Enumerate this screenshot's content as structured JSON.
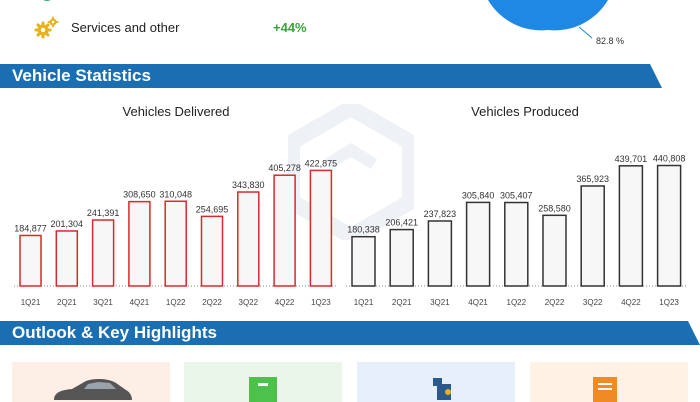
{
  "top": {
    "services_label": "Services and other",
    "services_value": "+44%",
    "pie_pct_label": "82.8 %",
    "pie_color": "#1f88e5",
    "gear_icon_color": "#e8b21c",
    "green_icon_color": "#3aa37a"
  },
  "sections": {
    "vehicle_statistics": "Vehicle Statistics",
    "outlook": "Outlook & Key Highlights",
    "band_color": "#1a6fb3"
  },
  "chart_data": [
    {
      "type": "bar",
      "title": "Vehicles Delivered",
      "categories": [
        "1Q21",
        "2Q21",
        "3Q21",
        "4Q21",
        "1Q22",
        "2Q22",
        "3Q22",
        "4Q22",
        "1Q23"
      ],
      "values": [
        184877,
        201304,
        241391,
        308650,
        310048,
        254695,
        343830,
        405278,
        422875
      ],
      "value_labels": [
        "184,877",
        "201,304",
        "241,391",
        "308,650",
        "310,048",
        "254,695",
        "343,830",
        "405,278",
        "422,875"
      ],
      "bar_stroke": "#d62b2b",
      "bar_fill": "#f7f7f7",
      "ylim": [
        0,
        450000
      ],
      "grid": false
    },
    {
      "type": "bar",
      "title": "Vehicles Produced",
      "categories": [
        "1Q21",
        "2Q21",
        "3Q21",
        "4Q21",
        "1Q22",
        "2Q22",
        "3Q22",
        "4Q22",
        "1Q23"
      ],
      "values": [
        180338,
        206421,
        237823,
        305840,
        305407,
        258580,
        365923,
        439701,
        440808
      ],
      "value_labels": [
        "180,338",
        "206,421",
        "237,823",
        "305,840",
        "305,407",
        "258,580",
        "365,923",
        "439,701",
        "440,808"
      ],
      "bar_stroke": "#333333",
      "bar_fill": "#f7f7f7",
      "ylim": [
        0,
        450000
      ],
      "grid": false
    }
  ],
  "cards": [
    {
      "icon": "car-icon",
      "bg": "#fdeee6"
    },
    {
      "icon": "box-icon",
      "bg": "#eaf6ea"
    },
    {
      "icon": "robot-arm-icon",
      "bg": "#e7f0fa"
    },
    {
      "icon": "document-icon",
      "bg": "#fdf2e3"
    }
  ]
}
